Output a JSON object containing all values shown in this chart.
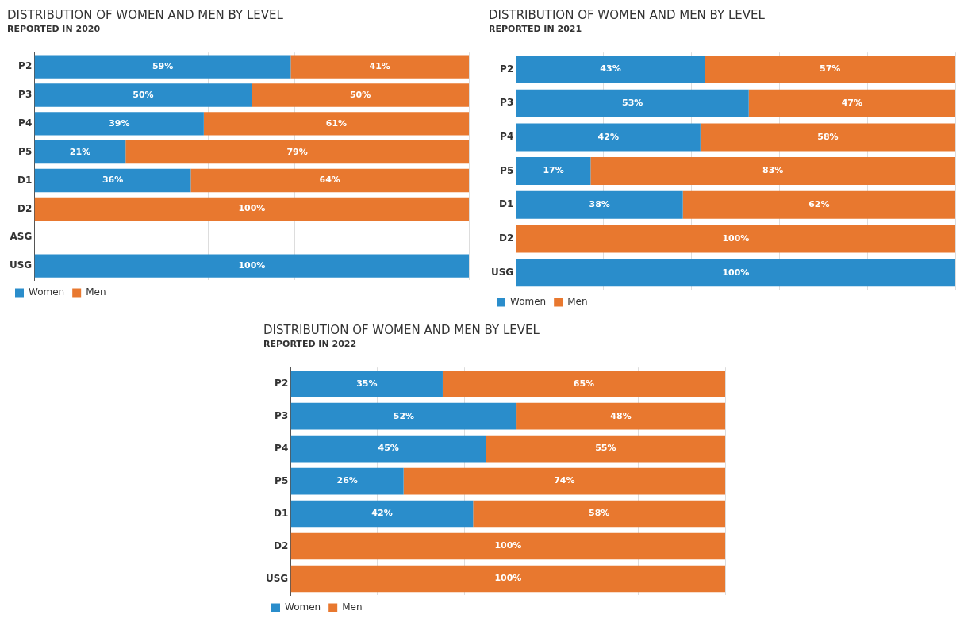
{
  "chart_data": [
    {
      "type": "bar",
      "orientation": "horizontal",
      "stacked": true,
      "title": "DISTRIBUTION OF WOMEN AND MEN BY LEVEL",
      "subtitle": "REPORTED IN 2020",
      "categories": [
        "P2",
        "P3",
        "P4",
        "P5",
        "D1",
        "D2",
        "ASG",
        "USG"
      ],
      "series": [
        {
          "name": "Women",
          "color": "#2a8dcb",
          "values": [
            59,
            50,
            39,
            21,
            36,
            null,
            null,
            100
          ],
          "value_labels": [
            "59%",
            "50%",
            "39%",
            "21%",
            "36%",
            null,
            null,
            "100%"
          ]
        },
        {
          "name": "Men",
          "color": "#e8782f",
          "values": [
            41,
            50,
            61,
            79,
            64,
            100,
            null,
            null
          ],
          "value_labels": [
            "41%",
            "50%",
            "61%",
            "79%",
            "64%",
            "100%",
            null,
            null
          ]
        }
      ],
      "xlim": [
        0,
        100
      ],
      "xticks": [
        {
          "value": 0,
          "label": null
        },
        {
          "value": 20,
          "label": null
        },
        {
          "value": 40,
          "label": null
        },
        {
          "value": 60,
          "label": null
        },
        {
          "value": 80,
          "label": null
        },
        {
          "value": 100,
          "label": null
        }
      ],
      "grid": "x",
      "tick_labels": "y",
      "legend": "bottom left"
    },
    {
      "type": "bar",
      "orientation": "horizontal",
      "stacked": true,
      "title": "DISTRIBUTION OF WOMEN AND MEN BY LEVEL",
      "subtitle": "REPORTED IN 2021",
      "categories": [
        "P2",
        "P3",
        "P4",
        "P5",
        "D1",
        "D2",
        "USG"
      ],
      "series": [
        {
          "name": "Women",
          "color": "#2a8dcb",
          "values": [
            43,
            53,
            42,
            17,
            38,
            null,
            100
          ],
          "value_labels": [
            "43%",
            "53%",
            "42%",
            "17%",
            "38%",
            null,
            "100%"
          ]
        },
        {
          "name": "Men",
          "color": "#e8782f",
          "values": [
            57,
            47,
            58,
            83,
            62,
            100,
            null
          ],
          "value_labels": [
            "57%",
            "47%",
            "58%",
            "83%",
            "62%",
            "100%",
            null
          ]
        }
      ],
      "xlim": [
        0,
        100
      ],
      "xticks": [
        {
          "value": 0,
          "label": null
        },
        {
          "value": 20,
          "label": null
        },
        {
          "value": 40,
          "label": null
        },
        {
          "value": 60,
          "label": null
        },
        {
          "value": 80,
          "label": null
        },
        {
          "value": 100,
          "label": null
        }
      ],
      "grid": "x",
      "tick_labels": "y",
      "legend": "bottom left"
    },
    {
      "type": "bar",
      "orientation": "horizontal",
      "stacked": true,
      "title": "DISTRIBUTION OF WOMEN AND MEN BY LEVEL",
      "subtitle": "REPORTED IN 2022",
      "categories": [
        "P2",
        "P3",
        "P4",
        "P5",
        "D1",
        "D2",
        "USG"
      ],
      "series": [
        {
          "name": "Women",
          "color": "#2a8dcb",
          "values": [
            35,
            52,
            45,
            26,
            42,
            null,
            null
          ],
          "value_labels": [
            "35%",
            "52%",
            "45%",
            "26%",
            "42%",
            null,
            null
          ]
        },
        {
          "name": "Men",
          "color": "#e8782f",
          "values": [
            65,
            48,
            55,
            74,
            58,
            100,
            100
          ],
          "value_labels": [
            "65%",
            "48%",
            "55%",
            "74%",
            "58%",
            "100%",
            "100%"
          ]
        }
      ],
      "xlim": [
        0,
        100
      ],
      "xticks": [
        {
          "value": 0,
          "label": null
        },
        {
          "value": 20,
          "label": null
        },
        {
          "value": 40,
          "label": null
        },
        {
          "value": 60,
          "label": null
        },
        {
          "value": 80,
          "label": null
        },
        {
          "value": 100,
          "label": null
        }
      ],
      "grid": "x",
      "tick_labels": "y",
      "legend": "bottom left"
    }
  ]
}
